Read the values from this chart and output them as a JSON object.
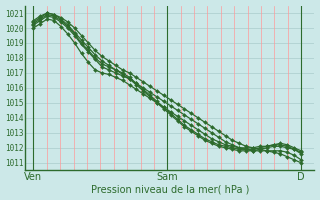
{
  "title": "",
  "xlabel": "Pression niveau de la mer( hPa )",
  "bg_color": "#cce8e8",
  "plot_bg_color": "#cce8e8",
  "grid_color_v": "#ff9999",
  "grid_color_h": "#aacccc",
  "line_color": "#2d6b2d",
  "tick_label_color": "#2d6b2d",
  "ylim": [
    1010.5,
    1021.5
  ],
  "yticks": [
    1011,
    1012,
    1013,
    1014,
    1015,
    1016,
    1017,
    1018,
    1019,
    1020,
    1021
  ],
  "xtick_labels": [
    "Ven",
    "Sam",
    "D"
  ],
  "xtick_positions": [
    0.0,
    0.5,
    1.0
  ],
  "series": [
    [
      1020.5,
      1020.8,
      1021.0,
      1020.9,
      1020.7,
      1020.4,
      1020.0,
      1019.5,
      1019.0,
      1018.5,
      1018.1,
      1017.8,
      1017.5,
      1017.2,
      1017.0,
      1016.7,
      1016.4,
      1016.1,
      1015.8,
      1015.5,
      1015.2,
      1014.9,
      1014.6,
      1014.3,
      1014.0,
      1013.7,
      1013.4,
      1013.1,
      1012.8,
      1012.5,
      1012.3,
      1012.1,
      1012.0,
      1011.9,
      1011.8,
      1011.7,
      1011.6,
      1011.4,
      1011.2,
      1011.0
    ],
    [
      1020.2,
      1020.5,
      1020.8,
      1020.7,
      1020.4,
      1020.0,
      1019.5,
      1018.9,
      1018.4,
      1017.9,
      1017.4,
      1017.2,
      1017.0,
      1016.8,
      1016.6,
      1016.3,
      1016.0,
      1015.7,
      1015.4,
      1015.1,
      1014.8,
      1014.5,
      1014.2,
      1013.9,
      1013.6,
      1013.3,
      1013.0,
      1012.7,
      1012.4,
      1012.2,
      1012.0,
      1011.9,
      1011.8,
      1011.8,
      1011.8,
      1011.8,
      1011.8,
      1011.7,
      1011.5,
      1011.2
    ],
    [
      1020.0,
      1020.3,
      1020.6,
      1020.5,
      1020.1,
      1019.6,
      1019.0,
      1018.3,
      1017.7,
      1017.2,
      1017.0,
      1016.9,
      1016.7,
      1016.5,
      1016.2,
      1015.9,
      1015.6,
      1015.3,
      1015.0,
      1014.7,
      1014.4,
      1014.1,
      1013.8,
      1013.5,
      1013.2,
      1012.9,
      1012.6,
      1012.4,
      1012.2,
      1012.1,
      1012.0,
      1012.0,
      1012.0,
      1012.1,
      1012.1,
      1012.2,
      1012.2,
      1012.1,
      1011.9,
      1011.6
    ],
    [
      1020.3,
      1020.6,
      1020.9,
      1020.8,
      1020.5,
      1020.1,
      1019.6,
      1019.0,
      1018.5,
      1018.0,
      1017.6,
      1017.4,
      1017.2,
      1016.9,
      1016.6,
      1016.2,
      1015.8,
      1015.4,
      1015.0,
      1014.6,
      1014.2,
      1013.8,
      1013.4,
      1013.1,
      1012.8,
      1012.5,
      1012.3,
      1012.1,
      1012.0,
      1011.9,
      1011.8,
      1011.8,
      1011.8,
      1011.9,
      1012.0,
      1012.1,
      1012.1,
      1012.0,
      1011.9,
      1011.7
    ],
    [
      1020.4,
      1020.7,
      1021.0,
      1020.9,
      1020.6,
      1020.2,
      1019.7,
      1019.2,
      1018.7,
      1018.2,
      1017.8,
      1017.5,
      1017.2,
      1017.0,
      1016.7,
      1016.3,
      1015.9,
      1015.5,
      1015.1,
      1014.7,
      1014.3,
      1013.9,
      1013.5,
      1013.2,
      1012.9,
      1012.6,
      1012.4,
      1012.2,
      1012.1,
      1012.0,
      1011.9,
      1011.9,
      1011.9,
      1012.0,
      1012.1,
      1012.2,
      1012.3,
      1012.2,
      1012.0,
      1011.8
    ]
  ]
}
